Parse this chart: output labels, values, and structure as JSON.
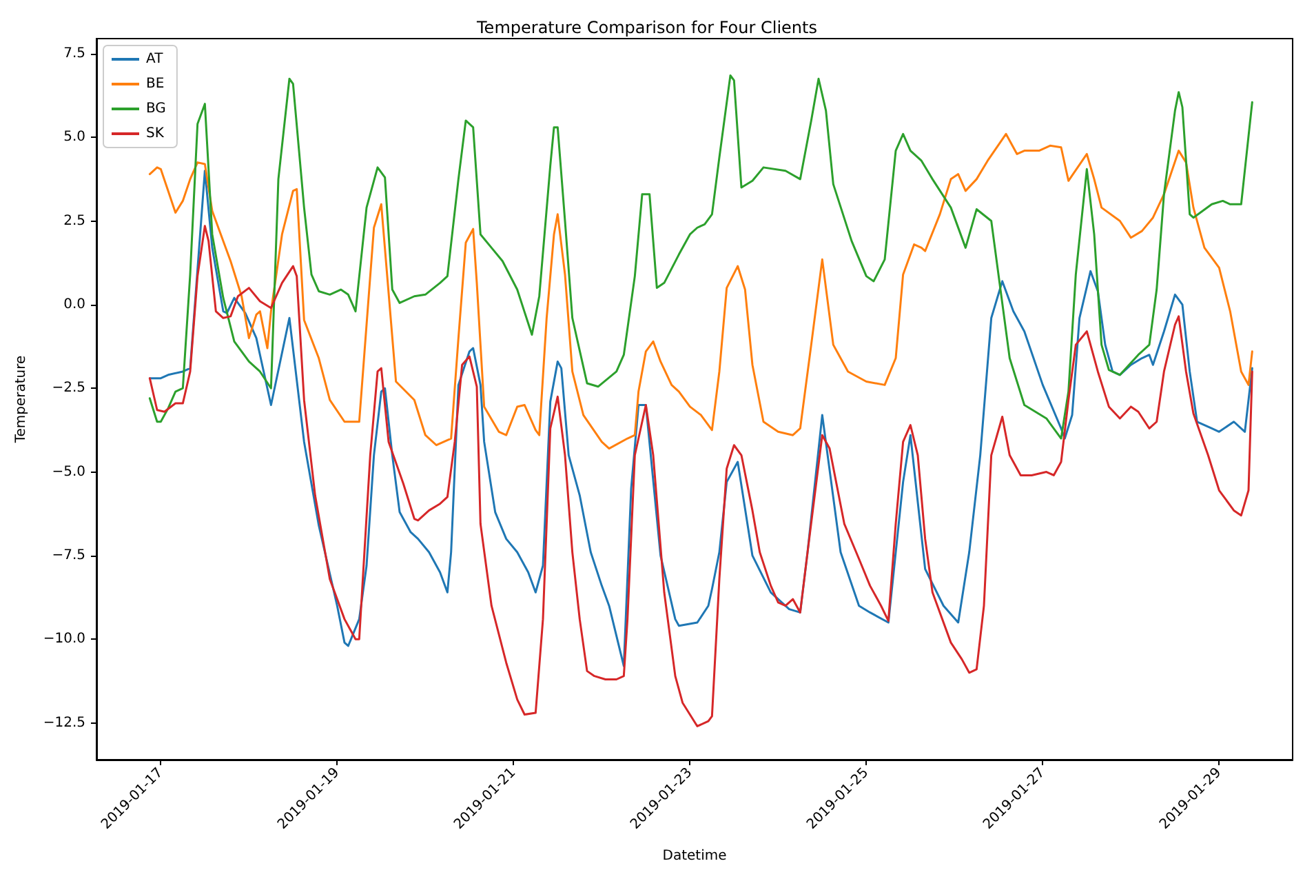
{
  "chart_data": {
    "type": "line",
    "title": "Temperature Comparison for Four Clients",
    "xlabel": "Datetime",
    "ylabel": "Temperature",
    "xlim": [
      "2019-01-16T06:30",
      "2019-01-29T20:00"
    ],
    "xticks": [
      "2019-01-17",
      "2019-01-19",
      "2019-01-21",
      "2019-01-23",
      "2019-01-25",
      "2019-01-27",
      "2019-01-29"
    ],
    "ylim": [
      -13.6,
      7.95
    ],
    "yticks": [
      {
        "value": -12.5,
        "label": "−12.5"
      },
      {
        "value": -10,
        "label": "−10.0"
      },
      {
        "value": -7.5,
        "label": "−7.5"
      },
      {
        "value": -5,
        "label": "−5.0"
      },
      {
        "value": -2.5,
        "label": "−2.5"
      },
      {
        "value": 0,
        "label": "0.0"
      },
      {
        "value": 2.5,
        "label": "2.5"
      },
      {
        "value": 5,
        "label": "5.0"
      },
      {
        "value": 7.5,
        "label": "7.5"
      }
    ],
    "grid": false,
    "legend": "top left",
    "line_style": "solid",
    "series": [
      {
        "name": "AT",
        "color": "#1f77b4",
        "x": [
          "2019-01-16T21:00",
          "2019-01-17T00:00",
          "2019-01-17T02:00",
          "2019-01-17T06:00",
          "2019-01-17T08:00",
          "2019-01-17T12:00",
          "2019-01-17T14:00",
          "2019-01-17T17:00",
          "2019-01-17T18:00",
          "2019-01-17T20:00",
          "2019-01-17T23:00",
          "2019-01-18T02:00",
          "2019-01-18T06:00",
          "2019-01-18T11:00",
          "2019-01-18T15:00",
          "2019-01-18T19:00",
          "2019-01-19T00:00",
          "2019-01-19T02:00",
          "2019-01-19T03:00",
          "2019-01-19T06:00",
          "2019-01-19T08:00",
          "2019-01-19T10:00",
          "2019-01-19T12:00",
          "2019-01-19T13:00",
          "2019-01-19T15:00",
          "2019-01-19T17:00",
          "2019-01-19T20:00",
          "2019-01-19T22:00",
          "2019-01-20T01:00",
          "2019-01-20T04:00",
          "2019-01-20T06:00",
          "2019-01-20T07:00",
          "2019-01-20T09:00",
          "2019-01-20T12:00",
          "2019-01-20T13:00",
          "2019-01-20T15:00",
          "2019-01-20T16:00",
          "2019-01-20T19:00",
          "2019-01-20T22:00",
          "2019-01-21T01:00",
          "2019-01-21T04:00",
          "2019-01-21T06:00",
          "2019-01-21T08:00",
          "2019-01-21T10:00",
          "2019-01-21T12:00",
          "2019-01-21T13:00",
          "2019-01-21T15:00",
          "2019-01-21T18:00",
          "2019-01-21T21:00",
          "2019-01-22T00:00",
          "2019-01-22T02:00",
          "2019-01-22T06:00",
          "2019-01-22T08:00",
          "2019-01-22T10:00",
          "2019-01-22T12:00",
          "2019-01-22T16:00",
          "2019-01-22T20:00",
          "2019-01-22T21:00",
          "2019-01-23T02:00",
          "2019-01-23T05:00",
          "2019-01-23T06:00",
          "2019-01-23T08:00",
          "2019-01-23T10:00",
          "2019-01-23T13:00",
          "2019-01-23T17:00",
          "2019-01-23T22:00",
          "2019-01-24T03:00",
          "2019-01-24T06:00",
          "2019-01-24T08:00",
          "2019-01-24T12:00",
          "2019-01-24T17:00",
          "2019-01-24T22:00",
          "2019-01-25T01:00",
          "2019-01-25T06:00",
          "2019-01-25T10:00",
          "2019-01-25T12:00",
          "2019-01-25T16:00",
          "2019-01-25T21:00",
          "2019-01-26T01:00",
          "2019-01-26T04:00",
          "2019-01-26T07:00",
          "2019-01-26T10:00",
          "2019-01-26T13:00",
          "2019-01-26T16:00",
          "2019-01-26T19:00",
          "2019-01-27T00:00",
          "2019-01-27T05:00",
          "2019-01-27T06:00",
          "2019-01-27T08:00",
          "2019-01-27T10:00",
          "2019-01-27T13:00",
          "2019-01-27T15:00",
          "2019-01-27T17:00",
          "2019-01-27T19:00",
          "2019-01-27T21:00",
          "2019-01-28T00:00",
          "2019-01-28T03:00",
          "2019-01-28T05:00",
          "2019-01-28T06:00",
          "2019-01-28T09:00",
          "2019-01-28T12:00",
          "2019-01-28T14:00",
          "2019-01-28T16:00",
          "2019-01-28T18:00",
          "2019-01-28T22:00",
          "2019-01-29T00:00",
          "2019-01-29T04:00",
          "2019-01-29T07:00",
          "2019-01-29T09:00"
        ],
        "values": [
          -2.2,
          -2.2,
          -2.1,
          -2.0,
          -1.9,
          4.0,
          1.7,
          -0.2,
          -0.25,
          0.2,
          -0.25,
          -1.0,
          -3.0,
          -0.4,
          -4.1,
          -6.6,
          -9.0,
          -10.1,
          -10.2,
          -9.4,
          -7.8,
          -4.5,
          -2.6,
          -2.5,
          -4.5,
          -6.2,
          -6.8,
          -7.0,
          -7.4,
          -8.0,
          -8.6,
          -7.4,
          -2.4,
          -1.4,
          -1.3,
          -2.4,
          -4.1,
          -6.2,
          -7.0,
          -7.4,
          -8.0,
          -8.6,
          -7.8,
          -2.9,
          -1.7,
          -1.9,
          -4.5,
          -5.7,
          -7.4,
          -8.4,
          -9.0,
          -10.8,
          -5.5,
          -3.0,
          -3.0,
          -7.5,
          -9.4,
          -9.6,
          -9.5,
          -9.0,
          -8.5,
          -7.4,
          -5.3,
          -4.7,
          -7.5,
          -8.6,
          -9.1,
          -9.2,
          -7.4,
          -3.3,
          -7.4,
          -9.0,
          -9.2,
          -9.5,
          -5.3,
          -3.9,
          -7.9,
          -9.0,
          -9.5,
          -7.4,
          -4.5,
          -0.4,
          0.7,
          -0.2,
          -0.8,
          -2.4,
          -3.7,
          -4.0,
          -3.3,
          -0.4,
          1.0,
          0.4,
          -1.2,
          -2.0,
          -2.1,
          -1.8,
          -1.6,
          -1.5,
          -1.8,
          -0.8,
          0.3,
          0.0,
          -2.0,
          -3.5,
          -3.7,
          -3.8,
          -3.5,
          -3.8,
          -1.9
        ]
      },
      {
        "name": "BE",
        "color": "#ff7f0e",
        "x": [
          "2019-01-16T21:00",
          "2019-01-16T23:00",
          "2019-01-17T00:00",
          "2019-01-17T02:00",
          "2019-01-17T04:00",
          "2019-01-17T06:00",
          "2019-01-17T08:00",
          "2019-01-17T10:00",
          "2019-01-17T12:00",
          "2019-01-17T14:00",
          "2019-01-17T17:00",
          "2019-01-17T19:00",
          "2019-01-17T22:00",
          "2019-01-18T00:00",
          "2019-01-18T02:00",
          "2019-01-18T03:00",
          "2019-01-18T05:00",
          "2019-01-18T06:00",
          "2019-01-18T09:00",
          "2019-01-18T12:00",
          "2019-01-18T13:00",
          "2019-01-18T15:00",
          "2019-01-18T19:00",
          "2019-01-18T22:00",
          "2019-01-19T02:00",
          "2019-01-19T06:00",
          "2019-01-19T10:00",
          "2019-01-19T12:00",
          "2019-01-19T16:00",
          "2019-01-19T21:00",
          "2019-01-20T00:00",
          "2019-01-20T03:00",
          "2019-01-20T07:00",
          "2019-01-20T09:00",
          "2019-01-20T11:00",
          "2019-01-20T13:00",
          "2019-01-20T14:00",
          "2019-01-20T16:00",
          "2019-01-20T20:00",
          "2019-01-20T22:00",
          "2019-01-21T01:00",
          "2019-01-21T03:00",
          "2019-01-21T06:00",
          "2019-01-21T07:00",
          "2019-01-21T09:00",
          "2019-01-21T11:00",
          "2019-01-21T12:00",
          "2019-01-21T14:00",
          "2019-01-21T16:00",
          "2019-01-21T19:00",
          "2019-01-22T00:00",
          "2019-01-22T02:00",
          "2019-01-22T07:00",
          "2019-01-22T09:00",
          "2019-01-22T10:00",
          "2019-01-22T12:00",
          "2019-01-22T14:00",
          "2019-01-22T16:00",
          "2019-01-22T19:00",
          "2019-01-22T21:00",
          "2019-01-23T00:00",
          "2019-01-23T03:00",
          "2019-01-23T06:00",
          "2019-01-23T08:00",
          "2019-01-23T10:00",
          "2019-01-23T13:00",
          "2019-01-23T15:00",
          "2019-01-23T17:00",
          "2019-01-23T20:00",
          "2019-01-24T00:00",
          "2019-01-24T04:00",
          "2019-01-24T06:00",
          "2019-01-24T09:00",
          "2019-01-24T12:00",
          "2019-01-24T15:00",
          "2019-01-24T19:00",
          "2019-01-25T00:00",
          "2019-01-25T05:00",
          "2019-01-25T08:00",
          "2019-01-25T10:00",
          "2019-01-25T13:00",
          "2019-01-25T15:00",
          "2019-01-25T16:00",
          "2019-01-25T20:00",
          "2019-01-25T23:00",
          "2019-01-26T01:00",
          "2019-01-26T03:00",
          "2019-01-26T06:00",
          "2019-01-26T09:00",
          "2019-01-26T14:00",
          "2019-01-26T17:00",
          "2019-01-26T19:00",
          "2019-01-26T23:00",
          "2019-01-27T02:00",
          "2019-01-27T05:00",
          "2019-01-27T07:00",
          "2019-01-27T12:00",
          "2019-01-27T14:00",
          "2019-01-27T16:00",
          "2019-01-27T21:00",
          "2019-01-28T00:00",
          "2019-01-28T03:00",
          "2019-01-28T06:00",
          "2019-01-28T09:00",
          "2019-01-28T13:00",
          "2019-01-28T15:00",
          "2019-01-28T17:00",
          "2019-01-28T20:00",
          "2019-01-29T00:00",
          "2019-01-29T03:00",
          "2019-01-29T06:00",
          "2019-01-29T08:00",
          "2019-01-29T09:00"
        ],
        "values": [
          3.9,
          4.1,
          4.05,
          3.4,
          2.75,
          3.1,
          3.75,
          4.25,
          4.2,
          2.8,
          1.9,
          1.3,
          0.25,
          -1.0,
          -0.3,
          -0.2,
          -1.3,
          -0.2,
          2.1,
          3.4,
          3.45,
          -0.46,
          -1.6,
          -2.85,
          -3.5,
          -3.5,
          2.3,
          3.0,
          -2.3,
          -2.85,
          -3.9,
          -4.2,
          -4.0,
          -1.0,
          1.85,
          2.26,
          0.65,
          -3.05,
          -3.8,
          -3.9,
          -3.05,
          -3.0,
          -3.75,
          -3.9,
          -0.4,
          2.1,
          2.7,
          0.9,
          -2.0,
          -3.3,
          -4.1,
          -4.3,
          -4.0,
          -3.9,
          -2.6,
          -1.4,
          -1.1,
          -1.7,
          -2.4,
          -2.6,
          -3.05,
          -3.3,
          -3.75,
          -2.0,
          0.5,
          1.15,
          0.45,
          -1.8,
          -3.5,
          -3.8,
          -3.9,
          -3.7,
          -1.2,
          1.35,
          -1.2,
          -2.0,
          -2.3,
          -2.4,
          -1.6,
          0.9,
          1.8,
          1.7,
          1.6,
          2.7,
          3.75,
          3.9,
          3.4,
          3.75,
          4.3,
          5.1,
          4.5,
          4.6,
          4.6,
          4.75,
          4.7,
          3.7,
          4.5,
          3.75,
          2.9,
          2.5,
          2.0,
          2.2,
          2.6,
          3.3,
          4.6,
          4.25,
          2.9,
          1.7,
          1.1,
          -0.2,
          -2.0,
          -2.4,
          -1.4
        ]
      },
      {
        "name": "BG",
        "color": "#2ca02c",
        "x": [
          "2019-01-16T21:00",
          "2019-01-16T23:00",
          "2019-01-17T00:00",
          "2019-01-17T02:00",
          "2019-01-17T04:00",
          "2019-01-17T06:00",
          "2019-01-17T08:00",
          "2019-01-17T10:00",
          "2019-01-17T12:00",
          "2019-01-17T14:00",
          "2019-01-17T17:00",
          "2019-01-17T20:00",
          "2019-01-18T00:00",
          "2019-01-18T03:00",
          "2019-01-18T06:00",
          "2019-01-18T08:00",
          "2019-01-18T11:00",
          "2019-01-18T12:00",
          "2019-01-18T15:00",
          "2019-01-18T17:00",
          "2019-01-18T19:00",
          "2019-01-18T22:00",
          "2019-01-19T01:00",
          "2019-01-19T03:00",
          "2019-01-19T05:00",
          "2019-01-19T08:00",
          "2019-01-19T11:00",
          "2019-01-19T13:00",
          "2019-01-19T15:00",
          "2019-01-19T17:00",
          "2019-01-19T21:00",
          "2019-01-20T00:00",
          "2019-01-20T04:00",
          "2019-01-20T06:00",
          "2019-01-20T09:00",
          "2019-01-20T11:00",
          "2019-01-20T13:00",
          "2019-01-20T15:00",
          "2019-01-20T18:00",
          "2019-01-20T21:00",
          "2019-01-21T01:00",
          "2019-01-21T05:00",
          "2019-01-21T07:00",
          "2019-01-21T10:00",
          "2019-01-21T11:00",
          "2019-01-21T12:00",
          "2019-01-21T14:00",
          "2019-01-21T16:00",
          "2019-01-21T20:00",
          "2019-01-21T23:00",
          "2019-01-22T04:00",
          "2019-01-22T06:00",
          "2019-01-22T09:00",
          "2019-01-22T11:00",
          "2019-01-22T13:00",
          "2019-01-22T15:00",
          "2019-01-22T17:00",
          "2019-01-22T21:00",
          "2019-01-23T00:00",
          "2019-01-23T02:00",
          "2019-01-23T04:00",
          "2019-01-23T06:00",
          "2019-01-23T08:00",
          "2019-01-23T11:00",
          "2019-01-23T12:00",
          "2019-01-23T14:00",
          "2019-01-23T17:00",
          "2019-01-23T20:00",
          "2019-01-24T02:00",
          "2019-01-24T06:00",
          "2019-01-24T09:00",
          "2019-01-24T11:00",
          "2019-01-24T13:00",
          "2019-01-24T15:00",
          "2019-01-24T20:00",
          "2019-01-25T00:00",
          "2019-01-25T02:00",
          "2019-01-25T05:00",
          "2019-01-25T08:00",
          "2019-01-25T10:00",
          "2019-01-25T12:00",
          "2019-01-25T15:00",
          "2019-01-25T18:00",
          "2019-01-25T23:00",
          "2019-01-26T03:00",
          "2019-01-26T06:00",
          "2019-01-26T10:00",
          "2019-01-26T15:00",
          "2019-01-26T19:00",
          "2019-01-27T01:00",
          "2019-01-27T05:00",
          "2019-01-27T07:00",
          "2019-01-27T09:00",
          "2019-01-27T12:00",
          "2019-01-27T14:00",
          "2019-01-27T16:00",
          "2019-01-27T18:00",
          "2019-01-27T21:00",
          "2019-01-28T02:00",
          "2019-01-28T05:00",
          "2019-01-28T07:00",
          "2019-01-28T09:00",
          "2019-01-28T12:00",
          "2019-01-28T13:00",
          "2019-01-28T14:00",
          "2019-01-28T16:00",
          "2019-01-28T17:00",
          "2019-01-28T22:00",
          "2019-01-29T01:00",
          "2019-01-29T03:00",
          "2019-01-29T06:00",
          "2019-01-29T09:00"
        ],
        "values": [
          -2.8,
          -3.5,
          -3.5,
          -3.1,
          -2.6,
          -2.5,
          0.9,
          5.4,
          6.0,
          2.1,
          0.2,
          -1.1,
          -1.7,
          -2.0,
          -2.5,
          3.75,
          6.75,
          6.6,
          2.9,
          0.9,
          0.4,
          0.3,
          0.45,
          0.3,
          -0.2,
          2.9,
          4.1,
          3.8,
          0.45,
          0.05,
          0.25,
          0.3,
          0.65,
          0.85,
          3.75,
          5.5,
          5.3,
          2.1,
          1.7,
          1.3,
          0.45,
          -0.9,
          0.25,
          4.15,
          5.3,
          5.3,
          2.5,
          -0.4,
          -2.35,
          -2.45,
          -2.0,
          -1.5,
          0.85,
          3.3,
          3.3,
          0.5,
          0.65,
          1.5,
          2.1,
          2.3,
          2.4,
          2.7,
          4.4,
          6.85,
          6.7,
          3.5,
          3.7,
          4.1,
          4.0,
          3.75,
          5.5,
          6.75,
          5.8,
          3.6,
          1.9,
          0.85,
          0.7,
          1.35,
          4.6,
          5.1,
          4.6,
          4.3,
          3.75,
          2.9,
          1.7,
          2.85,
          2.5,
          -1.6,
          -3.0,
          -3.4,
          -4.0,
          -2.6,
          0.9,
          4.05,
          2.1,
          -1.2,
          -1.95,
          -2.1,
          -1.5,
          -1.2,
          0.45,
          3.3,
          5.8,
          6.35,
          5.9,
          2.7,
          2.6,
          3.0,
          3.1,
          3.0,
          3.0,
          6.05
        ]
      },
      {
        "name": "SK",
        "color": "#d62728",
        "x": [
          "2019-01-16T21:00",
          "2019-01-16T23:00",
          "2019-01-17T01:00",
          "2019-01-17T04:00",
          "2019-01-17T06:00",
          "2019-01-17T08:00",
          "2019-01-17T10:00",
          "2019-01-17T12:00",
          "2019-01-17T13:00",
          "2019-01-17T15:00",
          "2019-01-17T17:00",
          "2019-01-17T19:00",
          "2019-01-17T21:00",
          "2019-01-18T00:00",
          "2019-01-18T03:00",
          "2019-01-18T06:00",
          "2019-01-18T09:00",
          "2019-01-18T12:00",
          "2019-01-18T13:00",
          "2019-01-18T15:00",
          "2019-01-18T18:00",
          "2019-01-18T22:00",
          "2019-01-19T02:00",
          "2019-01-19T05:00",
          "2019-01-19T06:00",
          "2019-01-19T09:00",
          "2019-01-19T11:00",
          "2019-01-19T12:00",
          "2019-01-19T14:00",
          "2019-01-19T18:00",
          "2019-01-19T21:00",
          "2019-01-19T22:00",
          "2019-01-20T01:00",
          "2019-01-20T04:00",
          "2019-01-20T06:00",
          "2019-01-20T08:00",
          "2019-01-20T10:00",
          "2019-01-20T12:00",
          "2019-01-20T14:00",
          "2019-01-20T15:00",
          "2019-01-20T18:00",
          "2019-01-20T22:00",
          "2019-01-21T01:00",
          "2019-01-21T03:00",
          "2019-01-21T06:00",
          "2019-01-21T08:00",
          "2019-01-21T10:00",
          "2019-01-21T12:00",
          "2019-01-21T14:00",
          "2019-01-21T16:00",
          "2019-01-21T18:00",
          "2019-01-21T20:00",
          "2019-01-21T22:00",
          "2019-01-22T01:00",
          "2019-01-22T04:00",
          "2019-01-22T06:00",
          "2019-01-22T07:00",
          "2019-01-22T09:00",
          "2019-01-22T12:00",
          "2019-01-22T14:00",
          "2019-01-22T17:00",
          "2019-01-22T20:00",
          "2019-01-22T22:00",
          "2019-01-23T02:00",
          "2019-01-23T05:00",
          "2019-01-23T06:00",
          "2019-01-23T08:00",
          "2019-01-23T10:00",
          "2019-01-23T12:00",
          "2019-01-23T14:00",
          "2019-01-23T17:00",
          "2019-01-23T19:00",
          "2019-01-23T22:00",
          "2019-01-24T00:00",
          "2019-01-24T02:00",
          "2019-01-24T04:00",
          "2019-01-24T06:00",
          "2019-01-24T08:00",
          "2019-01-24T12:00",
          "2019-01-24T14:00",
          "2019-01-24T18:00",
          "2019-01-24T22:00",
          "2019-01-25T01:00",
          "2019-01-25T04:00",
          "2019-01-25T06:00",
          "2019-01-25T08:00",
          "2019-01-25T10:00",
          "2019-01-25T12:00",
          "2019-01-25T14:00",
          "2019-01-25T16:00",
          "2019-01-25T18:00",
          "2019-01-25T23:00",
          "2019-01-26T02:00",
          "2019-01-26T04:00",
          "2019-01-26T06:00",
          "2019-01-26T08:00",
          "2019-01-26T10:00",
          "2019-01-26T13:00",
          "2019-01-26T15:00",
          "2019-01-26T18:00",
          "2019-01-26T21:00",
          "2019-01-27T01:00",
          "2019-01-27T03:00",
          "2019-01-27T05:00",
          "2019-01-27T07:00",
          "2019-01-27T09:00",
          "2019-01-27T12:00",
          "2019-01-27T15:00",
          "2019-01-27T18:00",
          "2019-01-27T21:00",
          "2019-01-28T00:00",
          "2019-01-28T02:00",
          "2019-01-28T05:00",
          "2019-01-28T07:00",
          "2019-01-28T09:00",
          "2019-01-28T12:00",
          "2019-01-28T13:00",
          "2019-01-28T15:00",
          "2019-01-28T17:00",
          "2019-01-28T21:00",
          "2019-01-29T00:00",
          "2019-01-29T04:00",
          "2019-01-29T06:00",
          "2019-01-29T08:00",
          "2019-01-29T09:00"
        ],
        "values": [
          -2.2,
          -3.15,
          -3.2,
          -2.95,
          -2.95,
          -2.0,
          0.85,
          2.35,
          1.9,
          -0.2,
          -0.4,
          -0.35,
          0.25,
          0.5,
          0.1,
          -0.1,
          0.65,
          1.15,
          0.85,
          -2.85,
          -5.7,
          -8.2,
          -9.4,
          -10.0,
          -10.0,
          -4.5,
          -2.0,
          -1.9,
          -4.1,
          -5.35,
          -6.4,
          -6.45,
          -6.15,
          -5.95,
          -5.75,
          -4.1,
          -1.8,
          -1.55,
          -2.45,
          -6.55,
          -9.0,
          -10.7,
          -11.8,
          -12.25,
          -12.2,
          -9.4,
          -3.7,
          -2.75,
          -4.5,
          -7.4,
          -9.4,
          -10.95,
          -11.1,
          -11.2,
          -11.2,
          -11.1,
          -9.4,
          -4.5,
          -3.0,
          -4.5,
          -8.6,
          -11.1,
          -11.9,
          -12.6,
          -12.45,
          -12.3,
          -8.2,
          -4.9,
          -4.2,
          -4.5,
          -6.15,
          -7.4,
          -8.4,
          -8.9,
          -9.0,
          -8.8,
          -9.2,
          -7.4,
          -3.9,
          -4.3,
          -6.55,
          -7.6,
          -8.4,
          -9.0,
          -9.45,
          -6.55,
          -4.1,
          -3.6,
          -4.5,
          -7.0,
          -8.6,
          -10.1,
          -10.6,
          -11.0,
          -10.9,
          -9.0,
          -4.5,
          -3.35,
          -4.5,
          -5.1,
          -5.1,
          -5.0,
          -5.1,
          -4.7,
          -2.85,
          -1.2,
          -0.8,
          -2.0,
          -3.05,
          -3.4,
          -3.05,
          -3.2,
          -3.7,
          -3.5,
          -2.0,
          -0.6,
          -0.35,
          -2.0,
          -3.25,
          -4.5,
          -5.55,
          -6.15,
          -6.3,
          -5.55,
          -2.0
        ]
      }
    ]
  }
}
